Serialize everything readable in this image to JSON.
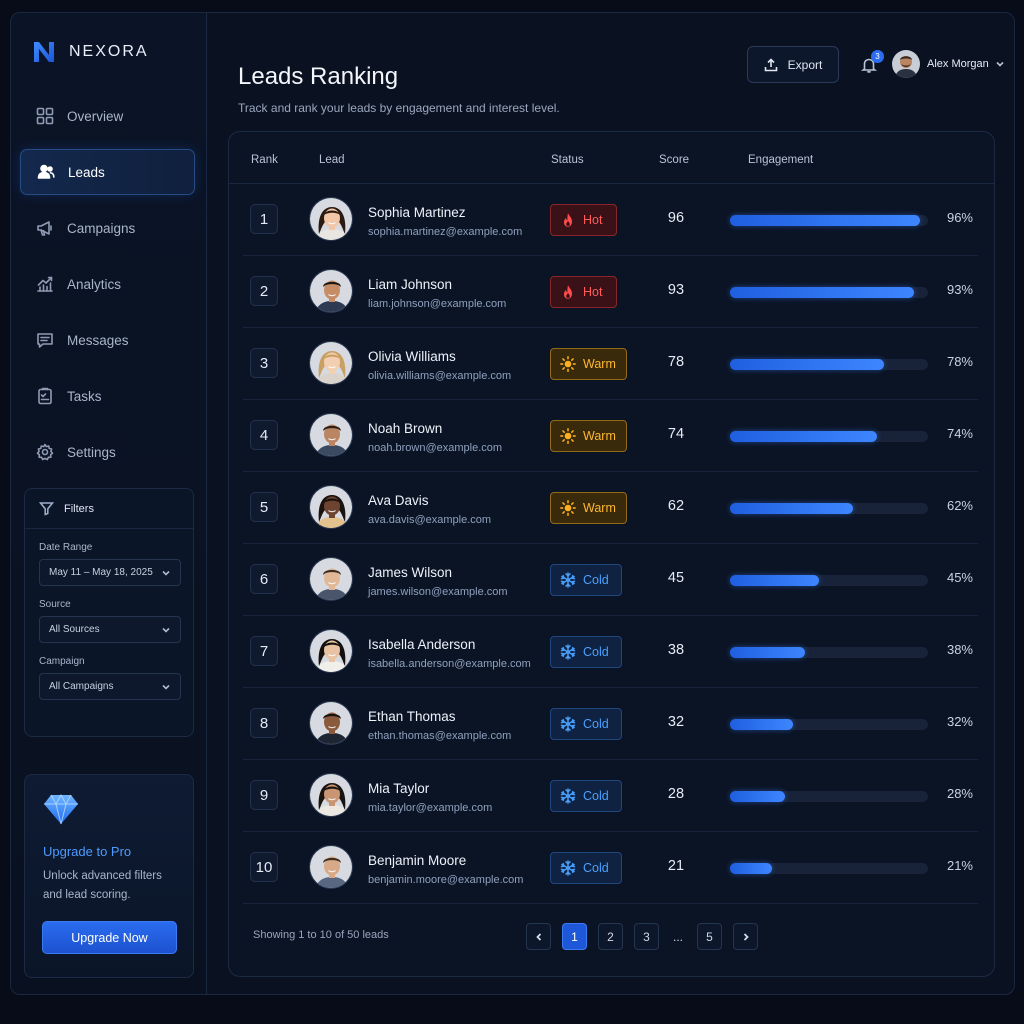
{
  "brand": {
    "name": "NEXORA",
    "accent": "#2b6cf2"
  },
  "nav": [
    {
      "label": "Overview",
      "icon": "grid-icon"
    },
    {
      "label": "Leads",
      "icon": "users-icon",
      "active": true
    },
    {
      "label": "Campaigns",
      "icon": "megaphone-icon"
    },
    {
      "label": "Analytics",
      "icon": "chart-icon"
    },
    {
      "label": "Messages",
      "icon": "message-icon"
    },
    {
      "label": "Tasks",
      "icon": "clipboard-icon"
    },
    {
      "label": "Settings",
      "icon": "gear-icon"
    }
  ],
  "filters": {
    "title": "Filters",
    "date_label": "Date Range",
    "date_value": "May 11 – May 18, 2025",
    "source_label": "Source",
    "source_value": "All Sources",
    "campaign_label": "Campaign",
    "campaign_value": "All Campaigns"
  },
  "upgrade": {
    "title": "Upgrade to Pro",
    "text": "Unlock advanced filters and lead scoring.",
    "button": "Upgrade Now"
  },
  "header": {
    "title": "Leads Ranking",
    "subtitle": "Track and rank your leads by engagement and interest level.",
    "export_label": "Export",
    "notifications": "3",
    "user_name": "Alex Morgan"
  },
  "table": {
    "columns": {
      "rank": "Rank",
      "lead": "Lead",
      "status": "Status",
      "score": "Score",
      "engagement": "Engagement"
    },
    "rows": [
      {
        "rank": "1",
        "name": "Sophia Martinez",
        "email": "sophia.martinez@example.com",
        "status": "Hot",
        "score": "96",
        "engagement": 96,
        "pct": "96%"
      },
      {
        "rank": "2",
        "name": "Liam Johnson",
        "email": "liam.johnson@example.com",
        "status": "Hot",
        "score": "93",
        "engagement": 93,
        "pct": "93%"
      },
      {
        "rank": "3",
        "name": "Olivia Williams",
        "email": "olivia.williams@example.com",
        "status": "Warm",
        "score": "78",
        "engagement": 78,
        "pct": "78%"
      },
      {
        "rank": "4",
        "name": "Noah Brown",
        "email": "noah.brown@example.com",
        "status": "Warm",
        "score": "74",
        "engagement": 74,
        "pct": "74%"
      },
      {
        "rank": "5",
        "name": "Ava Davis",
        "email": "ava.davis@example.com",
        "status": "Warm",
        "score": "62",
        "engagement": 62,
        "pct": "62%"
      },
      {
        "rank": "6",
        "name": "James Wilson",
        "email": "james.wilson@example.com",
        "status": "Cold",
        "score": "45",
        "engagement": 45,
        "pct": "45%"
      },
      {
        "rank": "7",
        "name": "Isabella Anderson",
        "email": "isabella.anderson@example.com",
        "status": "Cold",
        "score": "38",
        "engagement": 38,
        "pct": "38%"
      },
      {
        "rank": "8",
        "name": "Ethan Thomas",
        "email": "ethan.thomas@example.com",
        "status": "Cold",
        "score": "32",
        "engagement": 32,
        "pct": "32%"
      },
      {
        "rank": "9",
        "name": "Mia Taylor",
        "email": "mia.taylor@example.com",
        "status": "Cold",
        "score": "28",
        "engagement": 28,
        "pct": "28%"
      },
      {
        "rank": "10",
        "name": "Benjamin Moore",
        "email": "benjamin.moore@example.com",
        "status": "Cold",
        "score": "21",
        "engagement": 21,
        "pct": "21%"
      }
    ]
  },
  "pagination": {
    "summary": "Showing 1 to 10 of 50 leads",
    "pages": [
      "1",
      "2",
      "3",
      "...",
      "5"
    ],
    "current": "1"
  },
  "status_colors": {
    "Hot": "#ff5c5c",
    "Warm": "#ffb732",
    "Cold": "#4aa0ff"
  }
}
